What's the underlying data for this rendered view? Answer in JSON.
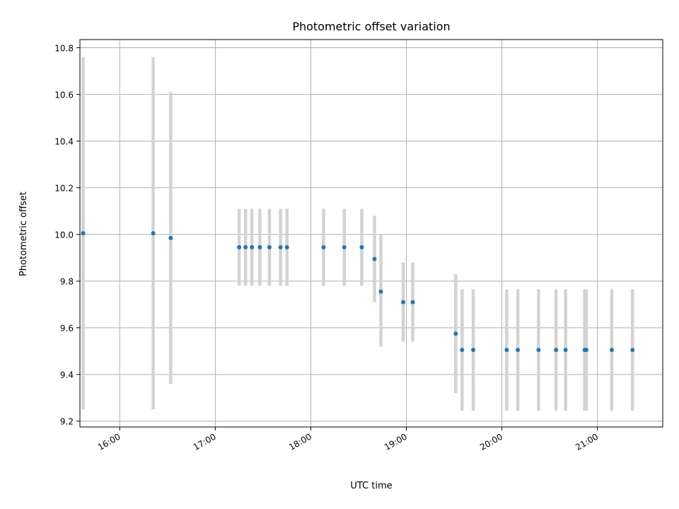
{
  "chart_data": {
    "type": "scatter",
    "title": "Photometric offset variation",
    "xlabel": "UTC time",
    "ylabel": "Photometric offset",
    "x_ticks": [
      "16:00",
      "17:00",
      "18:00",
      "19:00",
      "20:00",
      "21:00"
    ],
    "x_range": [
      "15:35",
      "21:41"
    ],
    "y_ticks": [
      "9.2",
      "9.4",
      "9.6",
      "9.8",
      "10.0",
      "10.2",
      "10.4",
      "10.6",
      "10.8"
    ],
    "y_range": [
      9.175,
      10.835
    ],
    "grid": true,
    "colors": {
      "point": "#1f77b4",
      "errorbar": "#d3d3d3",
      "grid": "#b0b0b0"
    },
    "series": [
      {
        "points": [
          {
            "x": "15:37",
            "y": 10.005,
            "err_low": 9.25,
            "err_high": 10.76
          },
          {
            "x": "16:21",
            "y": 10.005,
            "err_low": 9.25,
            "err_high": 10.76
          },
          {
            "x": "16:32",
            "y": 9.985,
            "err_low": 9.36,
            "err_high": 10.61
          },
          {
            "x": "17:15",
            "y": 9.945,
            "err_low": 9.78,
            "err_high": 10.11
          },
          {
            "x": "17:19",
            "y": 9.945,
            "err_low": 9.78,
            "err_high": 10.11
          },
          {
            "x": "17:23",
            "y": 9.945,
            "err_low": 9.78,
            "err_high": 10.11
          },
          {
            "x": "17:28",
            "y": 9.945,
            "err_low": 9.78,
            "err_high": 10.11
          },
          {
            "x": "17:34",
            "y": 9.945,
            "err_low": 9.78,
            "err_high": 10.11
          },
          {
            "x": "17:41",
            "y": 9.945,
            "err_low": 9.78,
            "err_high": 10.11
          },
          {
            "x": "17:45",
            "y": 9.945,
            "err_low": 9.78,
            "err_high": 10.11
          },
          {
            "x": "18:08",
            "y": 9.945,
            "err_low": 9.78,
            "err_high": 10.11
          },
          {
            "x": "18:21",
            "y": 9.945,
            "err_low": 9.78,
            "err_high": 10.11
          },
          {
            "x": "18:32",
            "y": 9.945,
            "err_low": 9.78,
            "err_high": 10.11
          },
          {
            "x": "18:40",
            "y": 9.895,
            "err_low": 9.71,
            "err_high": 10.08
          },
          {
            "x": "18:44",
            "y": 9.755,
            "err_low": 9.52,
            "err_high": 10.0
          },
          {
            "x": "18:58",
            "y": 9.71,
            "err_low": 9.54,
            "err_high": 9.88
          },
          {
            "x": "19:04",
            "y": 9.71,
            "err_low": 9.54,
            "err_high": 9.88
          },
          {
            "x": "19:31",
            "y": 9.575,
            "err_low": 9.32,
            "err_high": 9.83
          },
          {
            "x": "19:35",
            "y": 9.505,
            "err_low": 9.245,
            "err_high": 9.765
          },
          {
            "x": "19:42",
            "y": 9.505,
            "err_low": 9.245,
            "err_high": 9.765
          },
          {
            "x": "20:03",
            "y": 9.505,
            "err_low": 9.245,
            "err_high": 9.765
          },
          {
            "x": "20:10",
            "y": 9.505,
            "err_low": 9.245,
            "err_high": 9.765
          },
          {
            "x": "20:23",
            "y": 9.505,
            "err_low": 9.245,
            "err_high": 9.765
          },
          {
            "x": "20:34",
            "y": 9.505,
            "err_low": 9.245,
            "err_high": 9.765
          },
          {
            "x": "20:40",
            "y": 9.505,
            "err_low": 9.245,
            "err_high": 9.765
          },
          {
            "x": "20:52",
            "y": 9.505,
            "err_low": 9.245,
            "err_high": 9.765
          },
          {
            "x": "20:53",
            "y": 9.505,
            "err_low": 9.245,
            "err_high": 9.765
          },
          {
            "x": "21:09",
            "y": 9.505,
            "err_low": 9.245,
            "err_high": 9.765
          },
          {
            "x": "21:22",
            "y": 9.505,
            "err_low": 9.245,
            "err_high": 9.765
          }
        ]
      }
    ]
  }
}
